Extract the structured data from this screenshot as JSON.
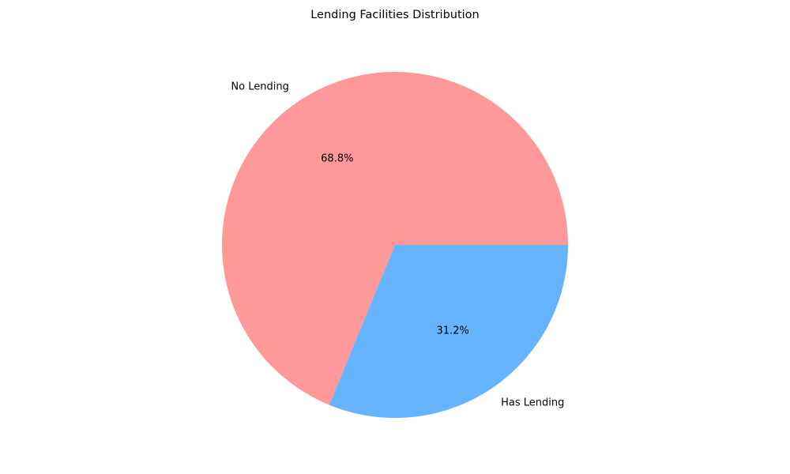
{
  "chart_data": {
    "type": "pie",
    "title": "Lending Facilities Distribution",
    "slices": [
      {
        "label": "No Lending",
        "value": 68.8,
        "pct_label": "68.8%",
        "color": "#ff9999"
      },
      {
        "label": "Has Lending",
        "value": 31.2,
        "pct_label": "31.2%",
        "color": "#66b3ff"
      }
    ],
    "start_angle_deg": 0,
    "direction": "counterclockwise",
    "legend": "none"
  }
}
